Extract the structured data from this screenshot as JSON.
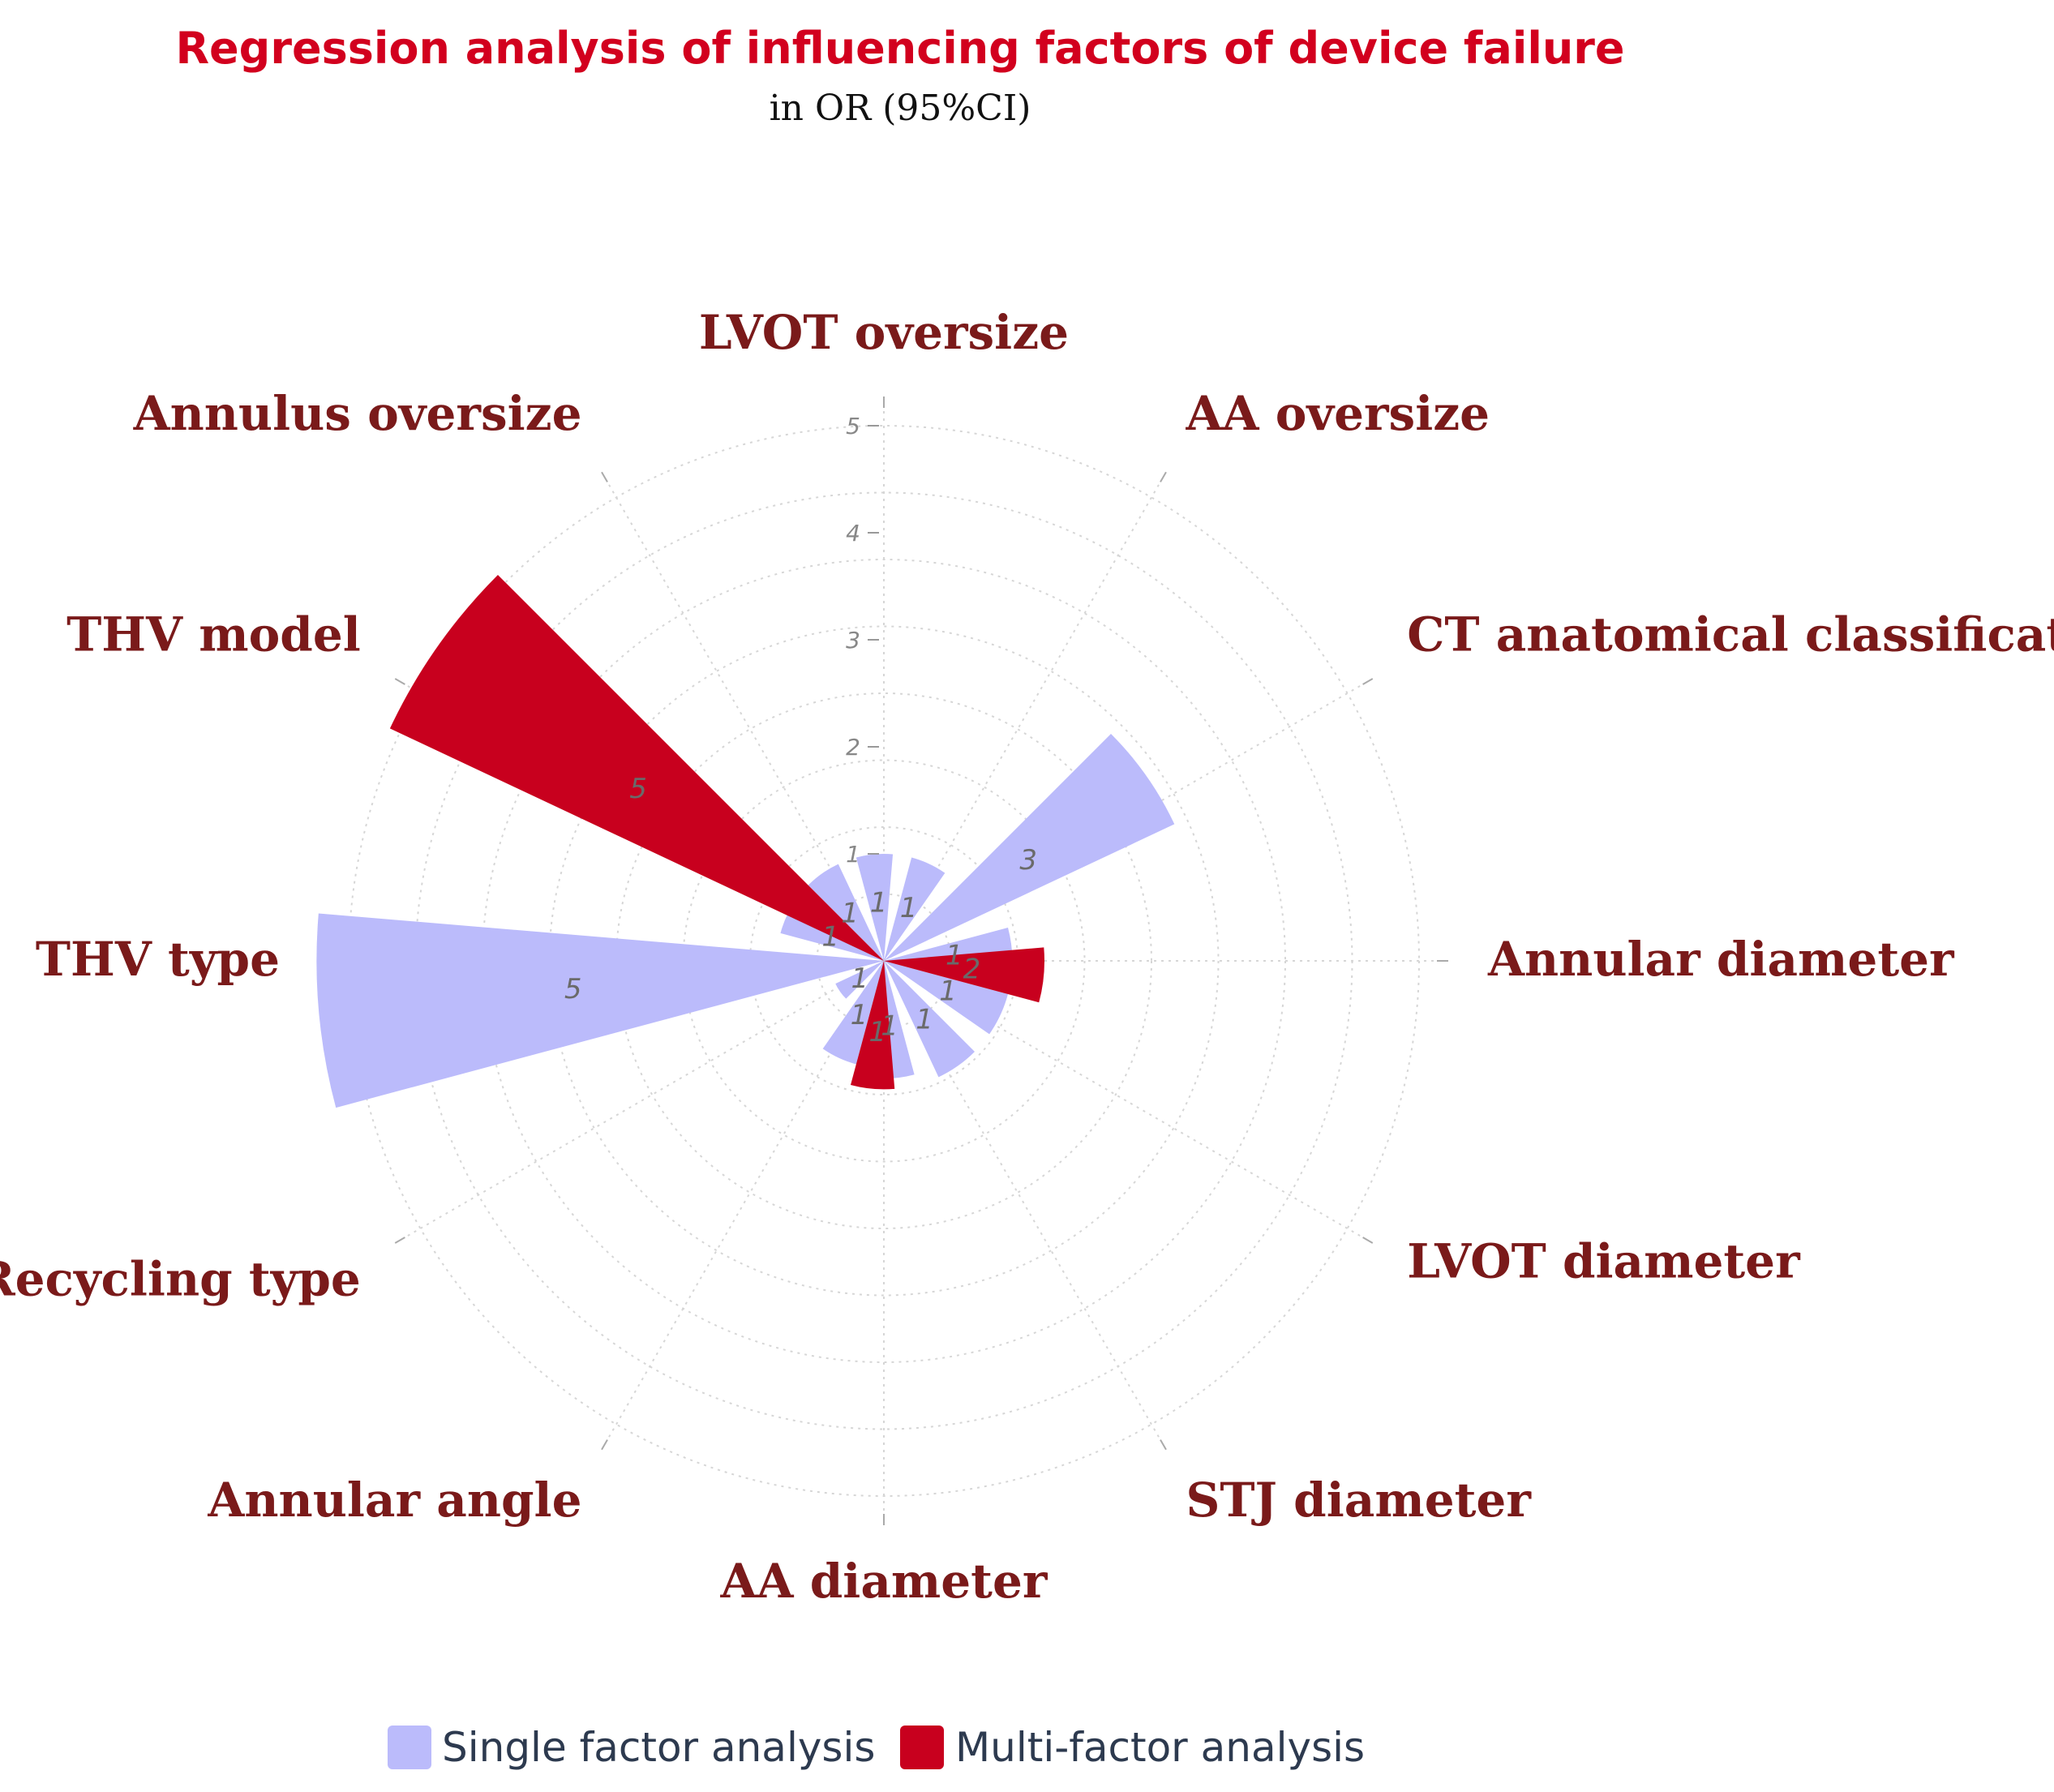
{
  "chart_data": {
    "type": "bar",
    "polar": true,
    "title": "Regression analysis of influencing factors of device failure",
    "subtitle": "in OR (95%CI)",
    "categories": [
      "LVOT oversize",
      "AA oversize",
      "CT anatomical classification",
      "Annular diameter",
      "LVOT diameter",
      "STJ diameter",
      "AA diameter",
      "Annular angle",
      "Recycling type",
      "THV type",
      "THV model",
      "Annulus oversize"
    ],
    "series": [
      {
        "name": "Single factor analysis",
        "color": "#bbbbfb",
        "values": [
          1,
          1,
          3,
          1.2,
          1.2,
          1.2,
          1.1,
          1,
          0.5,
          5.3,
          1,
          1
        ],
        "labels": [
          "1",
          "1",
          "3",
          "1",
          "1",
          "1",
          "1",
          "1",
          "1",
          "5",
          "1",
          "1"
        ]
      },
      {
        "name": "Multi-factor analysis",
        "color": "#c8001e",
        "values": [
          null,
          null,
          null,
          1.5,
          null,
          null,
          1.2,
          null,
          null,
          null,
          5.1,
          null
        ],
        "labels": [
          "",
          "",
          "",
          "2",
          "",
          "",
          "1",
          "",
          "",
          "",
          "5",
          ""
        ]
      }
    ],
    "radial_axis": {
      "range": [
        0,
        5
      ],
      "ticks": [
        "1",
        "2",
        "3",
        "4",
        "5"
      ]
    },
    "grid": true,
    "legend": {
      "position": "bottom",
      "entries": [
        "Single factor analysis",
        "Multi-factor analysis"
      ]
    },
    "colors": {
      "title": "#d2001e",
      "category_label": "#7a1a1a",
      "grid": "#d6d6d6",
      "legend_text": "#2d3a4f"
    }
  }
}
